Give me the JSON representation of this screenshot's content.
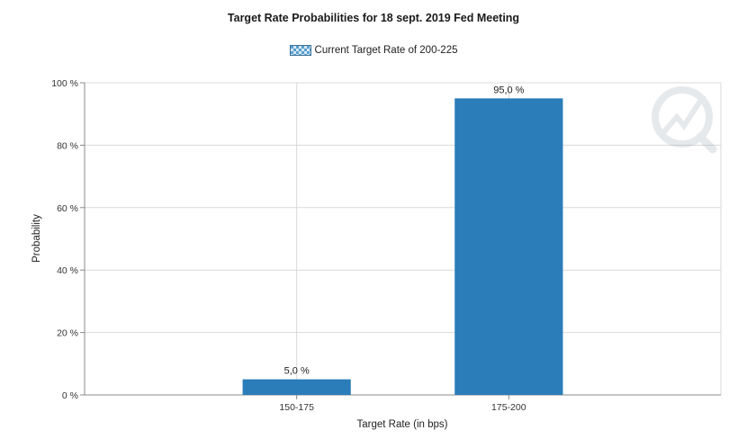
{
  "chart_data": {
    "type": "bar",
    "title": "Target Rate Probabilities for 18 sept. 2019 Fed Meeting",
    "xlabel": "Target Rate (in bps)",
    "ylabel": "Probability",
    "categories": [
      "150-175",
      "175-200"
    ],
    "series": [
      {
        "name": "Current Target Rate of 200-225",
        "values": [
          5.0,
          95.0
        ]
      }
    ],
    "data_labels": [
      "5,0 %",
      "95,0 %"
    ],
    "y_ticks": [
      "0 %",
      "20 %",
      "40 %",
      "60 %",
      "80 %",
      "100 %"
    ],
    "ylim": [
      0,
      100
    ],
    "grid": true,
    "legend_position": "top-center",
    "bar_color": "#2a7db8"
  }
}
